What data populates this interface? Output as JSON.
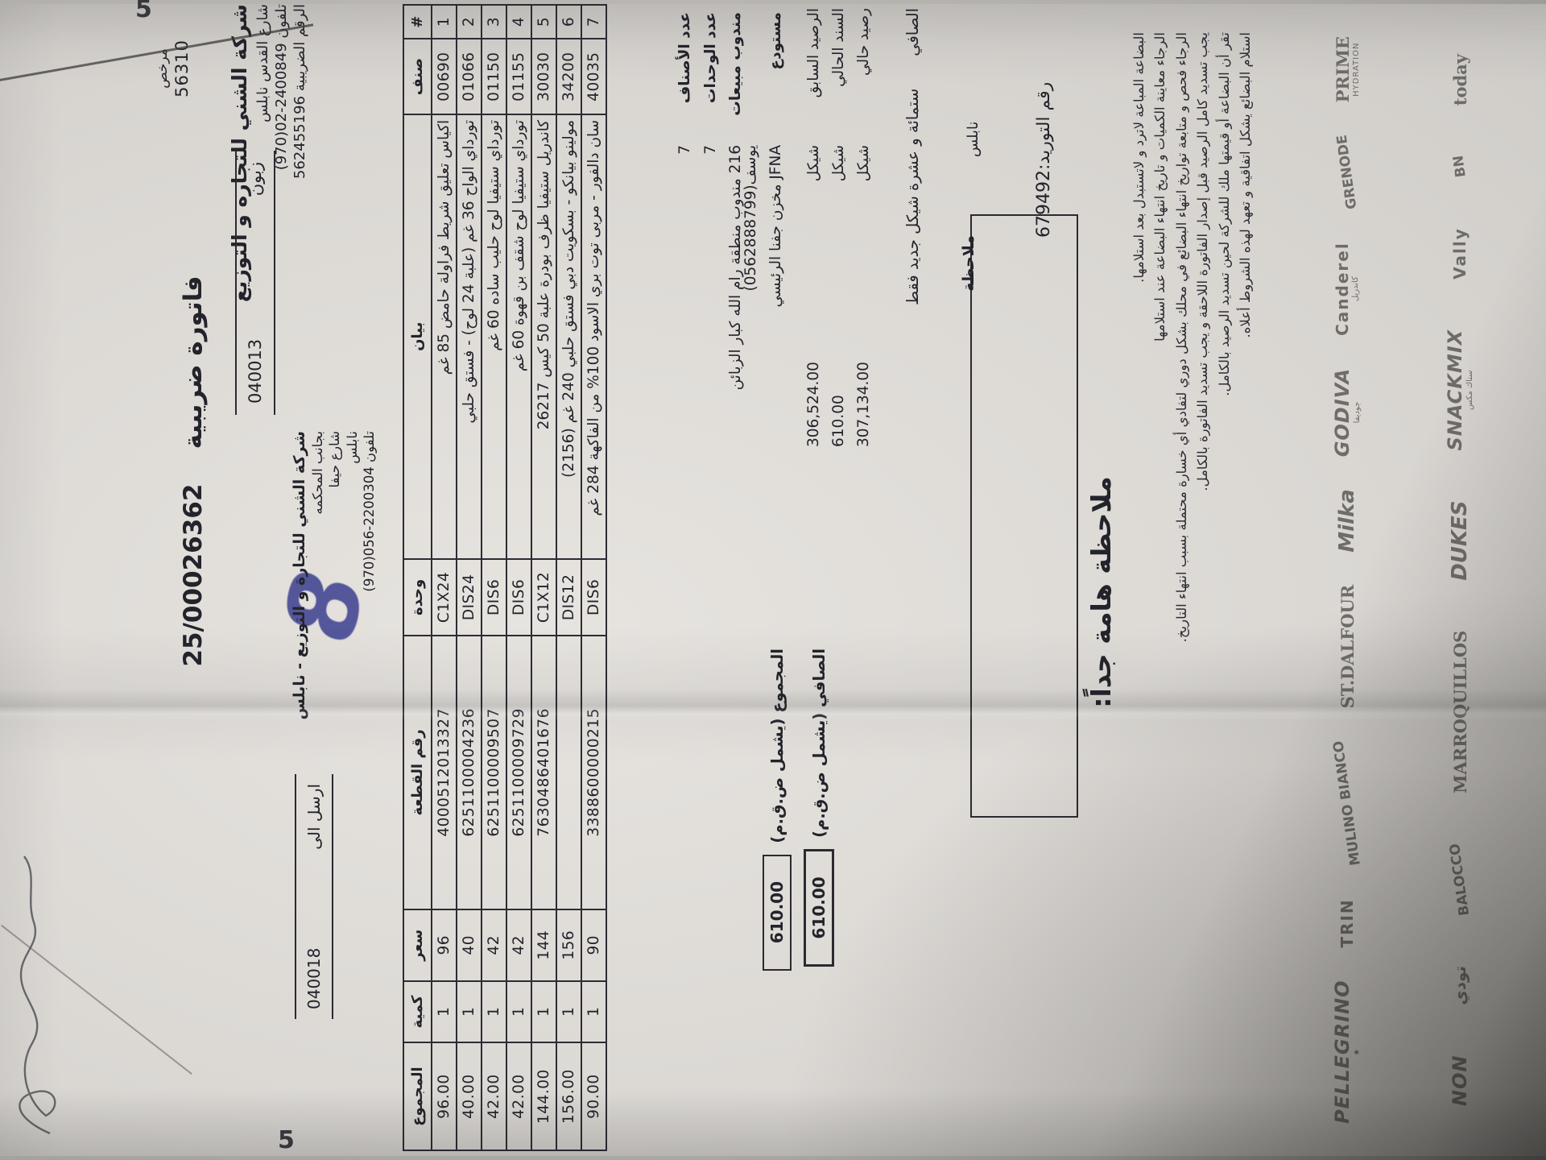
{
  "annotations": {
    "corner_digit_top": "5",
    "corner_digit_bottom": "5",
    "blue_mark": "8"
  },
  "header": {
    "license_label": "مرخص",
    "license_no": "56310",
    "title": "فاتورة ضريبية",
    "invoice_no": "25/00026362",
    "customer_label": "زبون",
    "customer_no": "040013",
    "sent_to_label": "ارسل الى",
    "sent_to_no": "040018",
    "company": {
      "name": "شركة الشني للتجاره و التوزيع",
      "address": "شارع القدس نابلس",
      "phone_label": "تلفون",
      "phone": "(970)02-2400849",
      "tax_label": "الرقم الضريبية",
      "tax_no": "562455196"
    },
    "branch": {
      "name": "شركة الشني للتجارة و التوزيع - نابلس",
      "line1": "بجانب المحكمه",
      "line2": "شارع حيفا",
      "line3": "نابلس",
      "phone_label": "تلفون",
      "phone": "(970)056-2200304"
    }
  },
  "table": {
    "headers": [
      "#",
      "صنف",
      "بيان",
      "وحدة",
      "رقم القطعة",
      "سعر",
      "كمية",
      "المجموع"
    ],
    "rows": [
      [
        "1",
        "00690",
        "اكياس تعليق شريط فراولة حامض 85 غم",
        "C1X24",
        "4000512013327",
        "96",
        "1",
        "96.00"
      ],
      [
        "2",
        "01066",
        "تورداي الواح 36 غم (علبة 24 لوح) - فستق حلبي",
        "DIS24",
        "6251100004236",
        "40",
        "1",
        "40.00"
      ],
      [
        "3",
        "01150",
        "تورداي ستيفيا لوح حليب ساده 60 غم",
        "DIS6",
        "6251100009507",
        "42",
        "1",
        "42.00"
      ],
      [
        "4",
        "01155",
        "تورداي ستيفيا لوح شقف بن قهوة 60 غم",
        "DIS6",
        "6251100009729",
        "42",
        "1",
        "42.00"
      ],
      [
        "5",
        "30030",
        "كاندريل ستيفيا ظرف بودرة علبة 50 كيس 26217",
        "C1X12",
        "7630486401676",
        "144",
        "1",
        "144.00"
      ],
      [
        "6",
        "34200",
        "مولينو بيانكو - بسكويت دبي فستق حلبي 240 غم (2156)",
        "DIS12",
        "",
        "156",
        "1",
        "156.00"
      ],
      [
        "7",
        "40035",
        "سان دالفور - مربى توت بري الاسود 100% من الفاكهة 284 غم",
        "DIS6",
        "3388600000215",
        "90",
        "1",
        "90.00"
      ]
    ],
    "total_label": "المجموع (يشمل ض.ق.م)",
    "total": "610.00",
    "net_label": "الصافي (يشمل ض.ق.م)",
    "net": "610.00"
  },
  "summary": {
    "rows": [
      {
        "label": "عدد الأصناف",
        "value": "7"
      },
      {
        "label": "عدد الوحدات",
        "value": "7"
      },
      {
        "label": "مندوب مبيعات",
        "value": "216 مندوب منطقة رام الله كبار الزبائن يوسف(0562888799)"
      },
      {
        "label": "مستودع",
        "value": "JFNA مخزن جفنا الرئيسي"
      }
    ],
    "balances": [
      {
        "label": "الرصيد السابق",
        "currency": "شيكل",
        "amount": "306,524.00"
      },
      {
        "label": "السند الحالي",
        "currency": "شيكل",
        "amount": "610.00"
      },
      {
        "label": "رصيد حالي",
        "currency": "شيكل",
        "amount": "307,134.00"
      }
    ],
    "net_words_label": "الصافي",
    "net_words": "ستمائة و عشرة شيكل جديد فقط"
  },
  "note_box_label": "ملاحظة",
  "supply": {
    "city": "نابلس",
    "label": "رقم التوريد:",
    "no": "679492"
  },
  "important_note": {
    "heading": "ملاحظة هامة جداً:",
    "lines": [
      "البضاعة المباعة لاترد و لاتستبدل بعد استلامها.",
      "الرجاء معاينة الكميات و تاريخ انتهاء البضاعة عند استلامها",
      "الرجاء فحص و متابعة تواريخ انتهاء البضائع في محلك بشكل دوري لتفادي أي خسارة محتملة بسبب انتهاء التاريخ.",
      "يجب تسديد كامل الرصيد قبل إصدار الفاتورة اللاحقة و يجب تسديد الفاتورة بالكامل.",
      "تقر أن البضاعة أو قيمتها ملك للشركة لحين تسديد الرصيد بالكامل.",
      "استلام البضائع يشكل اتفاقية و تعهد لهذه الشروط أعلاه."
    ]
  },
  "logos": {
    "row1": [
      {
        "t": "PELLEGRINO",
        "s": "★"
      },
      {
        "t": "TRIN",
        "s": ""
      },
      {
        "t": "MULINO BIANCO",
        "s": ""
      },
      {
        "t": "ST.DALFOUR",
        "s": ""
      },
      {
        "t": "Milka",
        "s": ""
      },
      {
        "t": "GODIVA",
        "s": "جوديفا"
      },
      {
        "t": "Canderel",
        "s": "كاندريل"
      },
      {
        "t": "GRENODE",
        "s": ""
      },
      {
        "t": "PRIME",
        "s": "HYDRATION"
      }
    ],
    "row2": [
      {
        "t": "NON",
        "s": ""
      },
      {
        "t": "تودي",
        "s": ""
      },
      {
        "t": "BALOCCO",
        "s": ""
      },
      {
        "t": "MARROQUILLOS",
        "s": ""
      },
      {
        "t": "DUKES",
        "s": ""
      },
      {
        "t": "SNACKMIX",
        "s": "سناك مكس"
      },
      {
        "t": "Vally",
        "s": ""
      },
      {
        "t": "BN",
        "s": ""
      },
      {
        "t": "today",
        "s": ""
      }
    ]
  }
}
